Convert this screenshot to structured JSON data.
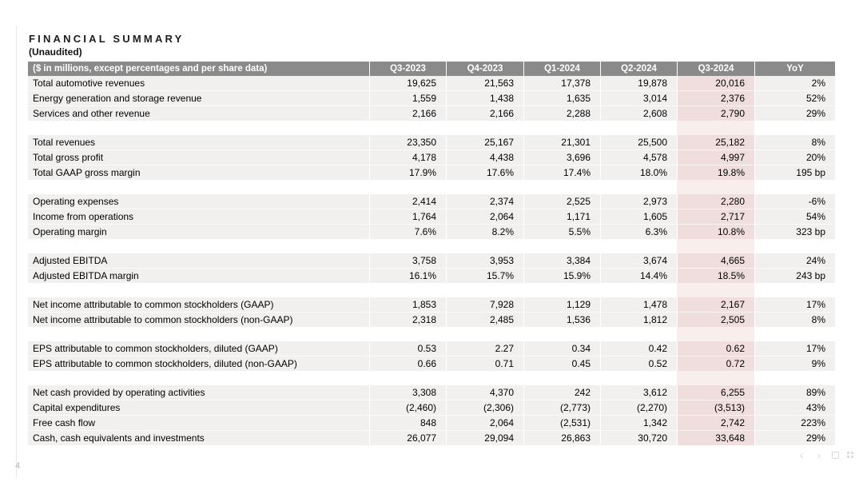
{
  "page": {
    "title": "FINANCIAL SUMMARY",
    "subtitle": "(Unaudited)",
    "page_number": "4"
  },
  "table": {
    "label_header": "($ in millions, except percentages and per share data)",
    "columns": [
      "Q3-2023",
      "Q4-2023",
      "Q1-2024",
      "Q2-2024",
      "Q3-2024",
      "YoY"
    ],
    "highlight_column": "Q3-2024",
    "sections": [
      {
        "rows": [
          {
            "label": "Total automotive revenues",
            "values": [
              "19,625",
              "21,563",
              "17,378",
              "19,878",
              "20,016",
              "2%"
            ]
          },
          {
            "label": "Energy generation and storage revenue",
            "values": [
              "1,559",
              "1,438",
              "1,635",
              "3,014",
              "2,376",
              "52%"
            ]
          },
          {
            "label": "Services and other revenue",
            "values": [
              "2,166",
              "2,166",
              "2,288",
              "2,608",
              "2,790",
              "29%"
            ]
          }
        ]
      },
      {
        "rows": [
          {
            "label": "Total revenues",
            "values": [
              "23,350",
              "25,167",
              "21,301",
              "25,500",
              "25,182",
              "8%"
            ]
          },
          {
            "label": "Total gross profit",
            "values": [
              "4,178",
              "4,438",
              "3,696",
              "4,578",
              "4,997",
              "20%"
            ]
          },
          {
            "label": "Total GAAP gross margin",
            "values": [
              "17.9%",
              "17.6%",
              "17.4%",
              "18.0%",
              "19.8%",
              "195 bp"
            ]
          }
        ]
      },
      {
        "rows": [
          {
            "label": "Operating expenses",
            "values": [
              "2,414",
              "2,374",
              "2,525",
              "2,973",
              "2,280",
              "-6%"
            ]
          },
          {
            "label": "Income from operations",
            "values": [
              "1,764",
              "2,064",
              "1,171",
              "1,605",
              "2,717",
              "54%"
            ]
          },
          {
            "label": "Operating margin",
            "values": [
              "7.6%",
              "8.2%",
              "5.5%",
              "6.3%",
              "10.8%",
              "323 bp"
            ]
          }
        ]
      },
      {
        "rows": [
          {
            "label": "Adjusted EBITDA",
            "values": [
              "3,758",
              "3,953",
              "3,384",
              "3,674",
              "4,665",
              "24%"
            ]
          },
          {
            "label": "Adjusted EBITDA margin",
            "values": [
              "16.1%",
              "15.7%",
              "15.9%",
              "14.4%",
              "18.5%",
              "243 bp"
            ]
          }
        ]
      },
      {
        "rows": [
          {
            "label": "Net income attributable to common stockholders (GAAP)",
            "values": [
              "1,853",
              "7,928",
              "1,129",
              "1,478",
              "2,167",
              "17%"
            ]
          },
          {
            "label": "Net income attributable to common stockholders (non-GAAP)",
            "values": [
              "2,318",
              "2,485",
              "1,536",
              "1,812",
              "2,505",
              "8%"
            ]
          }
        ]
      },
      {
        "rows": [
          {
            "label": "EPS attributable to common stockholders, diluted (GAAP)",
            "values": [
              "0.53",
              "2.27",
              "0.34",
              "0.42",
              "0.62",
              "17%"
            ]
          },
          {
            "label": "EPS attributable to common stockholders, diluted (non-GAAP)",
            "values": [
              "0.66",
              "0.71",
              "0.45",
              "0.52",
              "0.72",
              "9%"
            ]
          }
        ]
      },
      {
        "rows": [
          {
            "label": "Net cash provided by operating activities",
            "values": [
              "3,308",
              "4,370",
              "242",
              "3,612",
              "6,255",
              "89%"
            ]
          },
          {
            "label": "Capital expenditures",
            "values": [
              "(2,460)",
              "(2,306)",
              "(2,773)",
              "(2,270)",
              "(3,513)",
              "43%"
            ]
          },
          {
            "label": "Free cash flow",
            "values": [
              "848",
              "2,064",
              "(2,531)",
              "1,342",
              "2,742",
              "223%"
            ]
          },
          {
            "label": "Cash, cash equivalents and investments",
            "values": [
              "26,077",
              "29,094",
              "26,863",
              "30,720",
              "33,648",
              "29%"
            ]
          }
        ]
      }
    ]
  },
  "viewer_controls": {
    "icons": [
      {
        "name": "prev-slide",
        "glyph": "‹"
      },
      {
        "name": "next-slide",
        "glyph": "›"
      },
      {
        "name": "fullscreen",
        "glyph": ""
      },
      {
        "name": "grid-view",
        "glyph": ""
      }
    ]
  },
  "colors": {
    "header_bg": "#8a8a8a",
    "header_text": "#ffffff",
    "row_bg": "#f1f0ef",
    "highlight_col_bg": "#efdedd",
    "highlight_gap_bg": "#f8eeec",
    "text": "#000000",
    "page_number": "#b3b3b3"
  }
}
